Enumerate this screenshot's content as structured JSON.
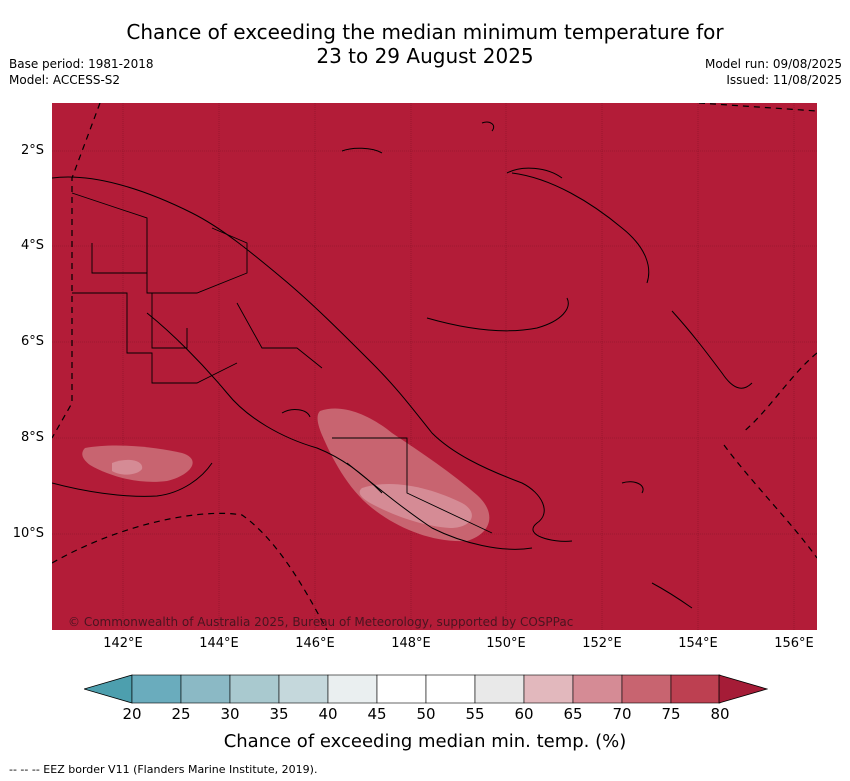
{
  "title_line1": "Chance of exceeding the median minimum temperature for",
  "title_line2": "23 to 29 August 2025",
  "meta": {
    "base_period": "Base period: 1981-2018",
    "model": "Model: ACCESS-S2",
    "model_run": "Model run: 09/08/2025",
    "issued": "Issued: 11/08/2025"
  },
  "map": {
    "background_color": "#b31c38",
    "lat_labels": [
      "2°S",
      "4°S",
      "6°S",
      "8°S",
      "10°S"
    ],
    "lon_labels": [
      "142°E",
      "144°E",
      "146°E",
      "148°E",
      "150°E",
      "152°E",
      "154°E",
      "156°E"
    ],
    "copyright": "© Commonwealth of Australia 2025, Bureau of Meteorology, supported by COSPPac"
  },
  "colorbar": {
    "ticks": [
      "20",
      "25",
      "30",
      "35",
      "40",
      "45",
      "50",
      "55",
      "60",
      "65",
      "70",
      "75",
      "80"
    ],
    "colors": [
      "#6aacbd",
      "#8bb9c5",
      "#a9c9cf",
      "#c5d8dc",
      "#eaeff0",
      "#ffffff",
      "#ffffff",
      "#e9e9e9",
      "#e2b8bd",
      "#d58b95",
      "#c86470",
      "#bd4051"
    ],
    "low_arrow_color": "#4d9fae",
    "high_arrow_color": "#a51c37",
    "label": "Chance of exceeding median min. temp. (%)"
  },
  "footer": "-- -- -- EEZ border V11 (Flanders Marine Institute, 2019)."
}
